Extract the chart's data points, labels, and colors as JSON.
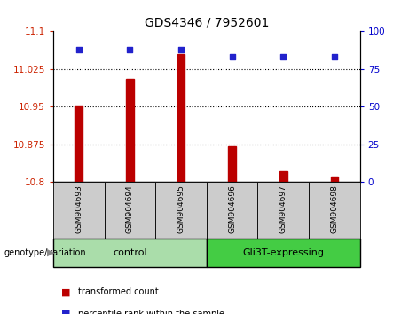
{
  "title": "GDS4346 / 7952601",
  "samples": [
    "GSM904693",
    "GSM904694",
    "GSM904695",
    "GSM904696",
    "GSM904697",
    "GSM904698"
  ],
  "transformed_counts": [
    10.953,
    11.005,
    11.055,
    10.872,
    10.822,
    10.812
  ],
  "percentile_ranks": [
    88,
    88,
    88,
    83,
    83,
    83
  ],
  "ylim_left": [
    10.8,
    11.1
  ],
  "ylim_right": [
    0,
    100
  ],
  "yticks_left": [
    10.8,
    10.875,
    10.95,
    11.025,
    11.1
  ],
  "yticks_right": [
    0,
    25,
    50,
    75,
    100
  ],
  "bar_color": "#bb0000",
  "dot_color": "#2222cc",
  "group_configs": [
    {
      "indices": [
        0,
        1,
        2
      ],
      "label": "control",
      "color": "#aaddaa"
    },
    {
      "indices": [
        3,
        4,
        5
      ],
      "label": "Gli3T-expressing",
      "color": "#44cc44"
    }
  ],
  "group_row_label": "genotype/variation",
  "legend_items": [
    {
      "label": "transformed count",
      "color": "#bb0000"
    },
    {
      "label": "percentile rank within the sample",
      "color": "#2222cc"
    }
  ],
  "tick_label_color_left": "#cc2200",
  "tick_label_color_right": "#0000cc",
  "sample_box_color": "#cccccc",
  "figsize": [
    4.61,
    3.54
  ],
  "dpi": 100
}
